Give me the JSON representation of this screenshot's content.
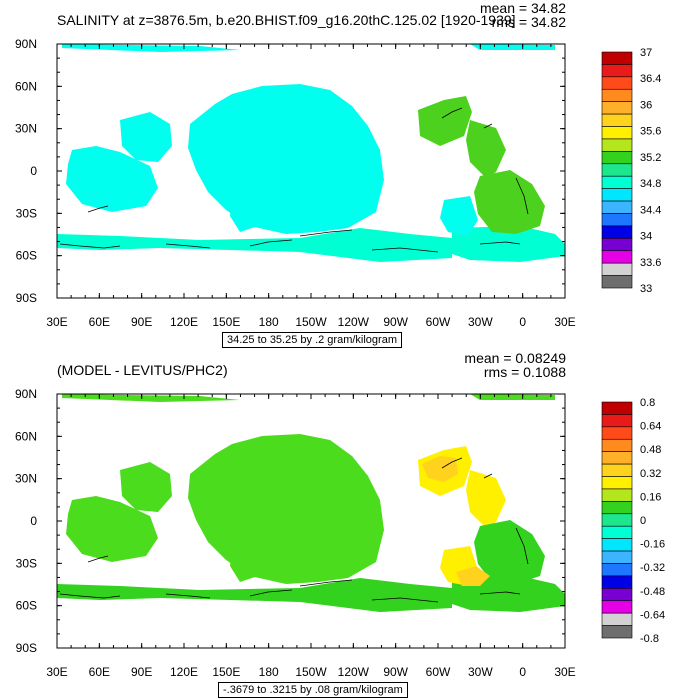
{
  "chart_data": [
    {
      "type": "heatmap",
      "title": "SALINITY at z=3876.5m, b.e20.BHIST.f09_g16.20thC.125.02 [1920-1939]",
      "mean_label": "mean = 34.82",
      "rms_label": "rms = 34.82",
      "caption": "34.25 to 35.25 by .2 gram/kilogram",
      "xticks": [
        "30E",
        "60E",
        "90E",
        "120E",
        "150E",
        "180",
        "150W",
        "120W",
        "90W",
        "60W",
        "30W",
        "0",
        "30E"
      ],
      "yticks": [
        "90N",
        "60N",
        "30N",
        "0",
        "30S",
        "60S",
        "90S"
      ],
      "colorbar_labels": [
        "37",
        "36.4",
        "36",
        "35.6",
        "35.2",
        "34.8",
        "34.4",
        "34",
        "33.6",
        "33"
      ],
      "colorbar_colors": [
        "#c00000",
        "#e81a1a",
        "#ff4a1a",
        "#ff8a1e",
        "#ffb02a",
        "#ffd21e",
        "#fff000",
        "#b4e61e",
        "#32d21e",
        "#1ee68c",
        "#00ffd2",
        "#00e6ff",
        "#3cb4ff",
        "#1e78ff",
        "#0000e6",
        "#7800d2",
        "#e600e6",
        "#d2d2d2",
        "#6e6e6e"
      ],
      "colors": {
        "deep": "#00ffee",
        "basin": "#00ffd2",
        "atlantic": "#4cd21e",
        "contour": "#000000"
      }
    },
    {
      "type": "heatmap",
      "title": "(MODEL - LEVITUS/PHC2)",
      "mean_label": "mean = 0.08249",
      "rms_label": "rms = 0.1088",
      "caption": "-.3679 to .3215 by .08 gram/kilogram",
      "xticks": [
        "30E",
        "60E",
        "90E",
        "120E",
        "150E",
        "180",
        "150W",
        "120W",
        "90W",
        "60W",
        "30W",
        "0",
        "30E"
      ],
      "yticks": [
        "90N",
        "60N",
        "30N",
        "0",
        "30S",
        "60S",
        "90S"
      ],
      "colorbar_labels": [
        "0.8",
        "0.64",
        "0.48",
        "0.32",
        "0.16",
        "0",
        "-0.16",
        "-0.32",
        "-0.48",
        "-0.64",
        "-0.8"
      ],
      "colorbar_colors": [
        "#c00000",
        "#e81a1a",
        "#ff4a1a",
        "#ff8a1e",
        "#ffb02a",
        "#ffd21e",
        "#fff000",
        "#b4e61e",
        "#32d21e",
        "#1ee68c",
        "#00ffd2",
        "#00e6ff",
        "#3cb4ff",
        "#1e78ff",
        "#0000e6",
        "#7800d2",
        "#e600e6",
        "#d2d2d2",
        "#6e6e6e"
      ],
      "colors": {
        "deep": "#4cdc1e",
        "basin": "#32d21e",
        "atlantic": "#fff000",
        "accent": "#ffd21e",
        "contour": "#000000"
      }
    }
  ]
}
